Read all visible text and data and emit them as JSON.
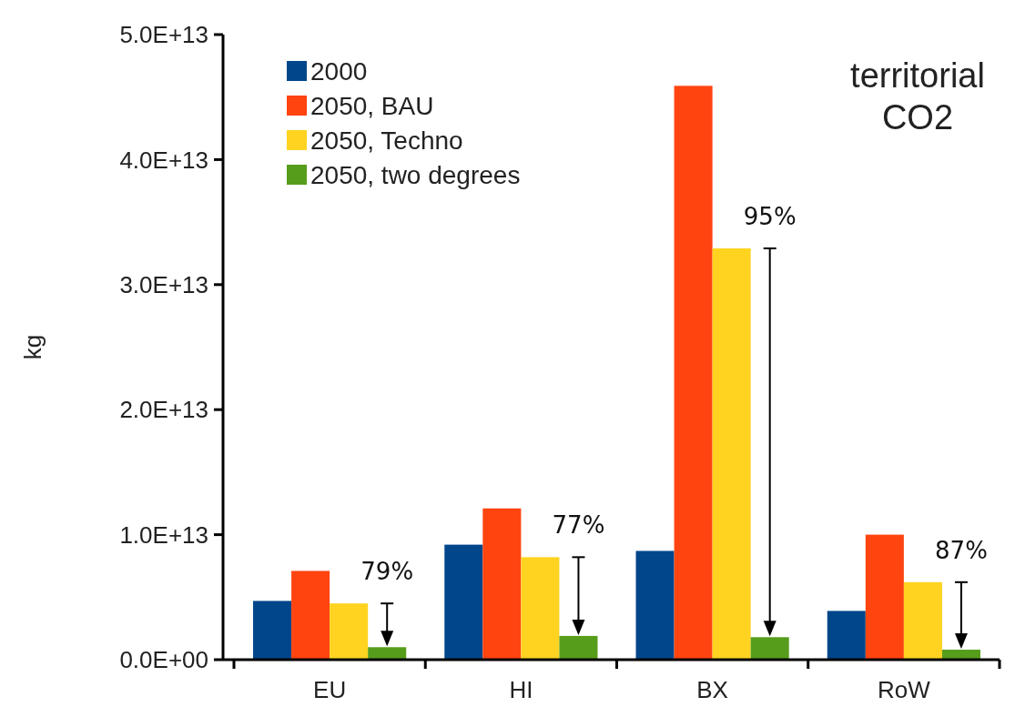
{
  "chart_data": {
    "type": "bar",
    "title": "territorial CO2",
    "ylabel": "kg",
    "categories": [
      "EU",
      "HI",
      "BX",
      "RoW"
    ],
    "series": [
      {
        "name": "2000",
        "color": "#00468b",
        "values": [
          4700000000000.0,
          9200000000000.0,
          8700000000000.0,
          3900000000000.0
        ]
      },
      {
        "name": "2050, BAU",
        "color": "#ff4410",
        "values": [
          7100000000000.0,
          12100000000000.0,
          45900000000000.0,
          10000000000000.0
        ]
      },
      {
        "name": "2050, Techno",
        "color": "#ffd320",
        "values": [
          4500000000000.0,
          8200000000000.0,
          32900000000000.0,
          6200000000000.0
        ]
      },
      {
        "name": "2050, two degrees",
        "color": "#579d1c",
        "values": [
          1000000000000.0,
          1900000000000.0,
          1800000000000.0,
          800000000000.0
        ]
      }
    ],
    "ylim": [
      0,
      50000000000000.0
    ],
    "yticks": [
      {
        "value": 0,
        "label": "0.0E+00"
      },
      {
        "value": 10000000000000.0,
        "label": "1.0E+13"
      },
      {
        "value": 20000000000000.0,
        "label": "2.0E+13"
      },
      {
        "value": 30000000000000.0,
        "label": "3.0E+13"
      },
      {
        "value": 40000000000000.0,
        "label": "4.0E+13"
      },
      {
        "value": 50000000000000.0,
        "label": "5.0E+13"
      }
    ],
    "annotations": [
      {
        "text": "79%",
        "x": "EU",
        "y": 4500000000000.0
      },
      {
        "text": "77%",
        "x": "HI",
        "y": 8200000000000.0
      },
      {
        "text": "95%",
        "x": "BX",
        "y": 32900000000000.0
      },
      {
        "text": "87%",
        "x": "RoW",
        "y": 6200000000000.0
      }
    ],
    "grid": false,
    "legend": "top left"
  }
}
